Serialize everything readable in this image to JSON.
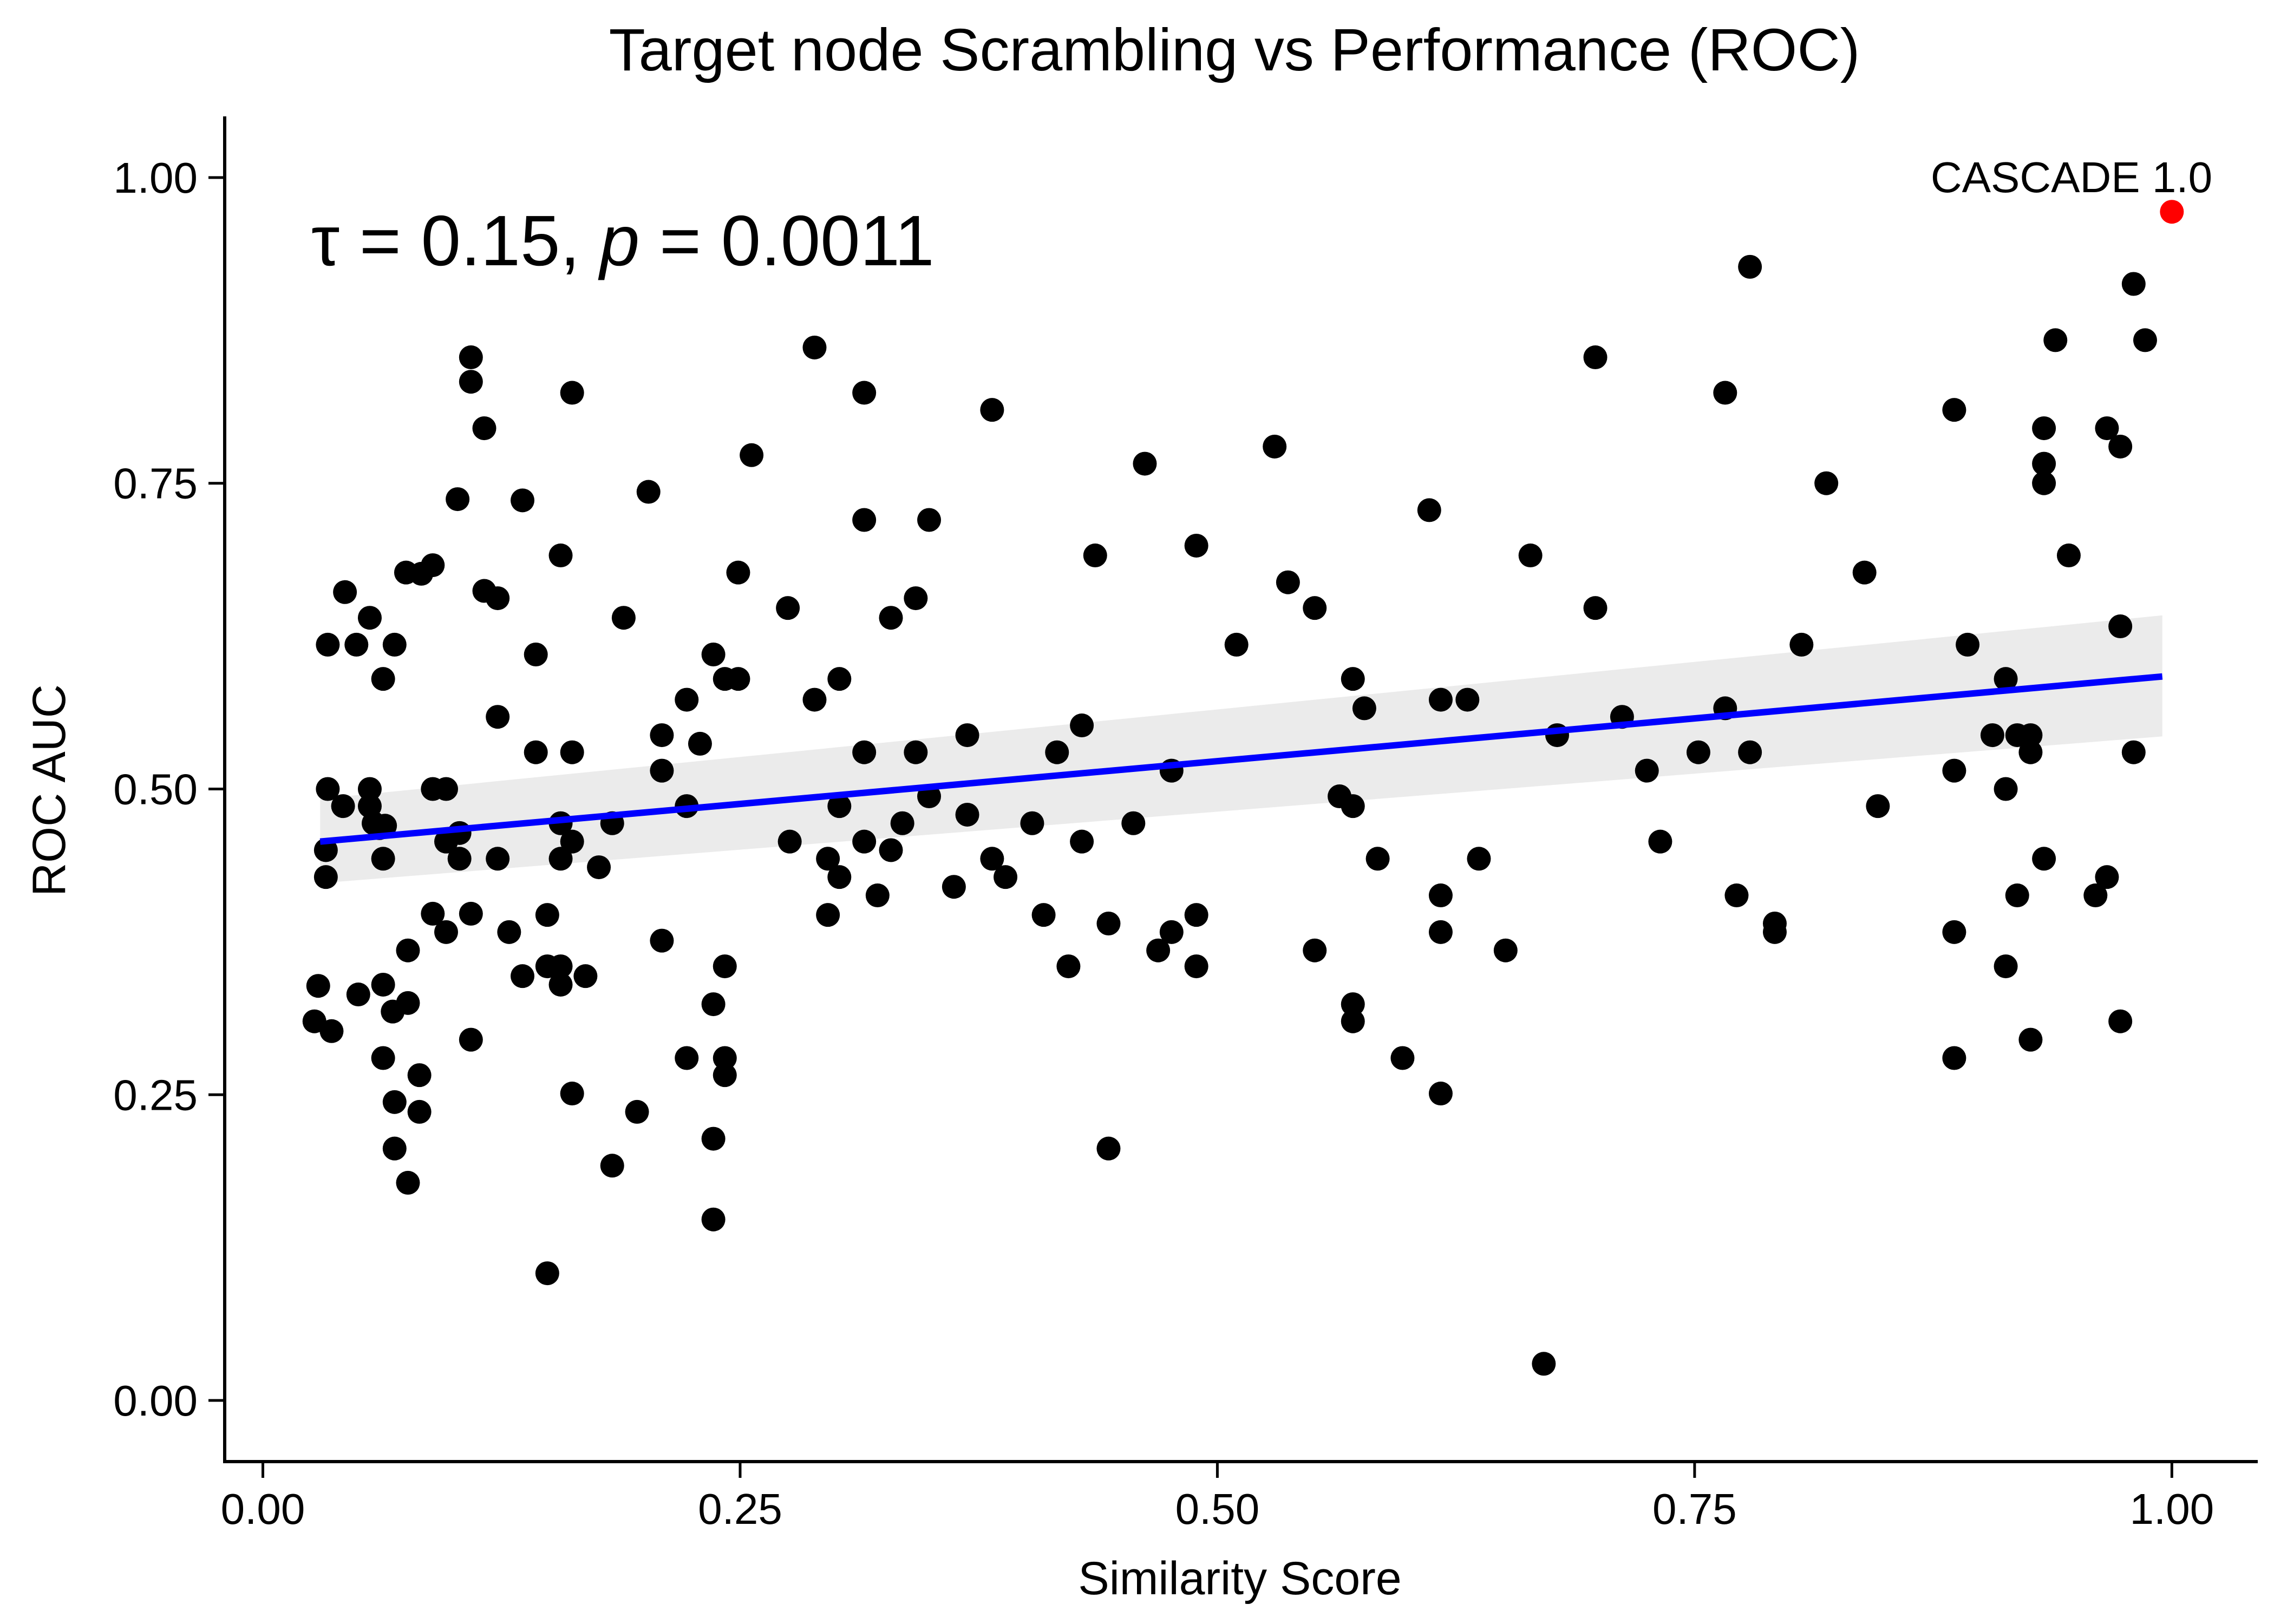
{
  "chart_data": {
    "type": "scatter",
    "title": "Target node Scrambling vs Performance (ROC)",
    "xlabel": "Similarity Score",
    "ylabel": "ROC AUC",
    "xlim": [
      -0.02,
      1.045
    ],
    "ylim": [
      -0.05,
      1.05
    ],
    "xticks": [
      0.0,
      0.25,
      0.5,
      0.75,
      1.0
    ],
    "xtick_labels": [
      "0.00",
      "0.25",
      "0.50",
      "0.75",
      "1.00"
    ],
    "yticks": [
      0.0,
      0.25,
      0.5,
      0.75,
      1.0
    ],
    "ytick_labels": [
      "0.00",
      "0.25",
      "0.50",
      "0.75",
      "1.00"
    ],
    "grid": false,
    "stat_annotation": {
      "tau_symbol": "τ",
      "tau_text": " = 0.15, ",
      "p_symbol": "p",
      "p_text": " = 0.0011"
    },
    "highlight": {
      "label": "CASCADE 1.0",
      "x": 1.0,
      "y": 0.972,
      "color": "#ff0000"
    },
    "point_color": "#000000",
    "fit_line": {
      "x": [
        0.03,
        0.995
      ],
      "y": [
        0.457,
        0.592
      ],
      "color": "#0000ff",
      "ci_lower": [
        0.423,
        0.543
      ],
      "ci_upper": [
        0.492,
        0.642
      ],
      "ci_color": "#ebebeb"
    },
    "points": [
      [
        0.027,
        0.31
      ],
      [
        0.029,
        0.339
      ],
      [
        0.033,
        0.45
      ],
      [
        0.033,
        0.428
      ],
      [
        0.034,
        0.5
      ],
      [
        0.034,
        0.618
      ],
      [
        0.036,
        0.302
      ],
      [
        0.042,
        0.486
      ],
      [
        0.043,
        0.661
      ],
      [
        0.049,
        0.618
      ],
      [
        0.05,
        0.332
      ],
      [
        0.056,
        0.5
      ],
      [
        0.056,
        0.64
      ],
      [
        0.056,
        0.486
      ],
      [
        0.058,
        0.472
      ],
      [
        0.061,
        0.468
      ],
      [
        0.063,
        0.59
      ],
      [
        0.063,
        0.34
      ],
      [
        0.063,
        0.28
      ],
      [
        0.063,
        0.443
      ],
      [
        0.064,
        0.47
      ],
      [
        0.068,
        0.318
      ],
      [
        0.069,
        0.244
      ],
      [
        0.069,
        0.206
      ],
      [
        0.069,
        0.618
      ],
      [
        0.075,
        0.677
      ],
      [
        0.076,
        0.178
      ],
      [
        0.076,
        0.325
      ],
      [
        0.076,
        0.368
      ],
      [
        0.082,
        0.266
      ],
      [
        0.082,
        0.236
      ],
      [
        0.083,
        0.676
      ],
      [
        0.089,
        0.683
      ],
      [
        0.089,
        0.5
      ],
      [
        0.089,
        0.398
      ],
      [
        0.096,
        0.5
      ],
      [
        0.096,
        0.457
      ],
      [
        0.096,
        0.383
      ],
      [
        0.102,
        0.737
      ],
      [
        0.103,
        0.443
      ],
      [
        0.103,
        0.464
      ],
      [
        0.109,
        0.853
      ],
      [
        0.109,
        0.833
      ],
      [
        0.109,
        0.398
      ],
      [
        0.109,
        0.295
      ],
      [
        0.116,
        0.795
      ],
      [
        0.116,
        0.662
      ],
      [
        0.123,
        0.656
      ],
      [
        0.123,
        0.559
      ],
      [
        0.123,
        0.443
      ],
      [
        0.129,
        0.383
      ],
      [
        0.136,
        0.736
      ],
      [
        0.136,
        0.347
      ],
      [
        0.143,
        0.61
      ],
      [
        0.143,
        0.53
      ],
      [
        0.149,
        0.397
      ],
      [
        0.149,
        0.355
      ],
      [
        0.149,
        0.104
      ],
      [
        0.156,
        0.691
      ],
      [
        0.156,
        0.472
      ],
      [
        0.156,
        0.443
      ],
      [
        0.156,
        0.355
      ],
      [
        0.156,
        0.34
      ],
      [
        0.162,
        0.824
      ],
      [
        0.162,
        0.53
      ],
      [
        0.162,
        0.457
      ],
      [
        0.162,
        0.251
      ],
      [
        0.169,
        0.347
      ],
      [
        0.176,
        0.436
      ],
      [
        0.183,
        0.472
      ],
      [
        0.183,
        0.192
      ],
      [
        0.189,
        0.64
      ],
      [
        0.196,
        0.236
      ],
      [
        0.202,
        0.743
      ],
      [
        0.209,
        0.544
      ],
      [
        0.209,
        0.515
      ],
      [
        0.209,
        0.376
      ],
      [
        0.222,
        0.573
      ],
      [
        0.222,
        0.486
      ],
      [
        0.222,
        0.28
      ],
      [
        0.229,
        0.537
      ],
      [
        0.236,
        0.61
      ],
      [
        0.236,
        0.324
      ],
      [
        0.236,
        0.214
      ],
      [
        0.236,
        0.148
      ],
      [
        0.242,
        0.59
      ],
      [
        0.242,
        0.355
      ],
      [
        0.242,
        0.28
      ],
      [
        0.242,
        0.266
      ],
      [
        0.249,
        0.677
      ],
      [
        0.249,
        0.59
      ],
      [
        0.256,
        0.773
      ],
      [
        0.275,
        0.648
      ],
      [
        0.276,
        0.457
      ],
      [
        0.289,
        0.861
      ],
      [
        0.289,
        0.573
      ],
      [
        0.296,
        0.443
      ],
      [
        0.296,
        0.397
      ],
      [
        0.302,
        0.59
      ],
      [
        0.302,
        0.486
      ],
      [
        0.302,
        0.428
      ],
      [
        0.315,
        0.824
      ],
      [
        0.315,
        0.72
      ],
      [
        0.315,
        0.53
      ],
      [
        0.315,
        0.457
      ],
      [
        0.322,
        0.413
      ],
      [
        0.329,
        0.64
      ],
      [
        0.329,
        0.45
      ],
      [
        0.335,
        0.472
      ],
      [
        0.342,
        0.656
      ],
      [
        0.342,
        0.53
      ],
      [
        0.349,
        0.72
      ],
      [
        0.349,
        0.494
      ],
      [
        0.362,
        0.42
      ],
      [
        0.369,
        0.544
      ],
      [
        0.369,
        0.479
      ],
      [
        0.382,
        0.81
      ],
      [
        0.382,
        0.443
      ],
      [
        0.389,
        0.428
      ],
      [
        0.403,
        0.472
      ],
      [
        0.409,
        0.397
      ],
      [
        0.416,
        0.53
      ],
      [
        0.422,
        0.355
      ],
      [
        0.429,
        0.552
      ],
      [
        0.429,
        0.457
      ],
      [
        0.436,
        0.691
      ],
      [
        0.443,
        0.39
      ],
      [
        0.443,
        0.206
      ],
      [
        0.456,
        0.472
      ],
      [
        0.462,
        0.766
      ],
      [
        0.469,
        0.368
      ],
      [
        0.476,
        0.515
      ],
      [
        0.476,
        0.383
      ],
      [
        0.489,
        0.699
      ],
      [
        0.489,
        0.397
      ],
      [
        0.489,
        0.355
      ],
      [
        0.51,
        0.618
      ],
      [
        0.53,
        0.78
      ],
      [
        0.537,
        0.669
      ],
      [
        0.551,
        0.648
      ],
      [
        0.551,
        0.368
      ],
      [
        0.564,
        0.494
      ],
      [
        0.571,
        0.59
      ],
      [
        0.571,
        0.486
      ],
      [
        0.571,
        0.324
      ],
      [
        0.571,
        0.31
      ],
      [
        0.577,
        0.566
      ],
      [
        0.584,
        0.443
      ],
      [
        0.597,
        0.28
      ],
      [
        0.611,
        0.728
      ],
      [
        0.617,
        0.573
      ],
      [
        0.617,
        0.413
      ],
      [
        0.617,
        0.383
      ],
      [
        0.617,
        0.251
      ],
      [
        0.631,
        0.573
      ],
      [
        0.637,
        0.443
      ],
      [
        0.651,
        0.368
      ],
      [
        0.664,
        0.691
      ],
      [
        0.671,
        0.03
      ],
      [
        0.678,
        0.544
      ],
      [
        0.698,
        0.853
      ],
      [
        0.698,
        0.648
      ],
      [
        0.712,
        0.559
      ],
      [
        0.725,
        0.515
      ],
      [
        0.732,
        0.457
      ],
      [
        0.752,
        0.53
      ],
      [
        0.766,
        0.824
      ],
      [
        0.766,
        0.566
      ],
      [
        0.772,
        0.413
      ],
      [
        0.779,
        0.927
      ],
      [
        0.779,
        0.53
      ],
      [
        0.792,
        0.39
      ],
      [
        0.792,
        0.383
      ],
      [
        0.806,
        0.618
      ],
      [
        0.819,
        0.75
      ],
      [
        0.839,
        0.677
      ],
      [
        0.846,
        0.486
      ],
      [
        0.886,
        0.81
      ],
      [
        0.886,
        0.515
      ],
      [
        0.886,
        0.383
      ],
      [
        0.886,
        0.28
      ],
      [
        0.893,
        0.618
      ],
      [
        0.906,
        0.544
      ],
      [
        0.913,
        0.59
      ],
      [
        0.913,
        0.5
      ],
      [
        0.913,
        0.355
      ],
      [
        0.919,
        0.544
      ],
      [
        0.919,
        0.413
      ],
      [
        0.926,
        0.544
      ],
      [
        0.926,
        0.53
      ],
      [
        0.926,
        0.295
      ],
      [
        0.933,
        0.795
      ],
      [
        0.933,
        0.766
      ],
      [
        0.933,
        0.75
      ],
      [
        0.933,
        0.443
      ],
      [
        0.939,
        0.867
      ],
      [
        0.946,
        0.691
      ],
      [
        0.96,
        0.413
      ],
      [
        0.966,
        0.795
      ],
      [
        0.966,
        0.428
      ],
      [
        0.973,
        0.78
      ],
      [
        0.973,
        0.633
      ],
      [
        0.973,
        0.31
      ],
      [
        0.98,
        0.913
      ],
      [
        0.98,
        0.53
      ],
      [
        0.986,
        0.867
      ]
    ]
  }
}
